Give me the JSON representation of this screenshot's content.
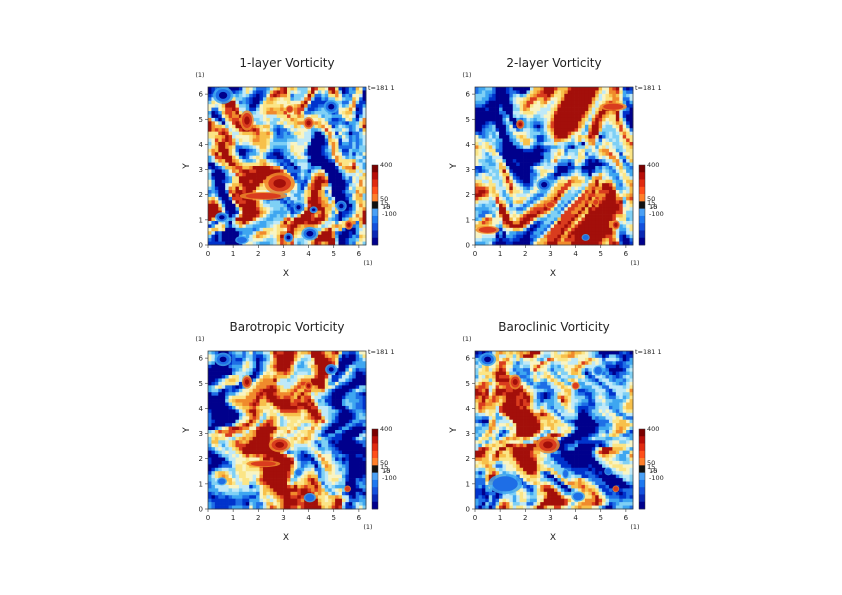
{
  "chart_data": [
    {
      "type": "heatmap",
      "title": "1-layer Vorticity",
      "xlabel": "X",
      "ylabel": "Y",
      "x_unit": "(1)",
      "y_unit": "(1)",
      "xlim": [
        0,
        6.283
      ],
      "ylim": [
        0,
        6.283
      ],
      "xticks": [
        "0",
        "1",
        "2",
        "3",
        "4",
        "5",
        "6"
      ],
      "yticks": [
        "0",
        "1",
        "2",
        "3",
        "4",
        "5",
        "6"
      ],
      "time_label": "t=181 1",
      "colorbar_labels": [
        "400",
        "50",
        "15",
        "10",
        "-5",
        "-100"
      ],
      "colorbar_values": [
        400,
        50,
        15,
        10,
        -5,
        -100
      ],
      "vortices": [
        {
          "x": 2.85,
          "y": 2.45,
          "rx": 0.45,
          "ry": 0.32,
          "v": 1
        },
        {
          "x": 1.55,
          "y": 4.95,
          "rx": 0.2,
          "ry": 0.3,
          "v": 0.9
        },
        {
          "x": 4.0,
          "y": 4.85,
          "rx": 0.16,
          "ry": 0.18,
          "v": 0.8
        },
        {
          "x": 3.25,
          "y": 5.4,
          "rx": 0.12,
          "ry": 0.12,
          "v": 0.6
        },
        {
          "x": 5.6,
          "y": 0.8,
          "rx": 0.12,
          "ry": 0.14,
          "v": 0.7
        },
        {
          "x": 2.2,
          "y": 1.95,
          "rx": 0.7,
          "ry": 0.12,
          "v": 0.6
        },
        {
          "x": 0.6,
          "y": 5.95,
          "rx": 0.3,
          "ry": 0.25,
          "v": -1
        },
        {
          "x": 4.9,
          "y": 5.5,
          "rx": 0.22,
          "ry": 0.2,
          "v": -0.9
        },
        {
          "x": 3.6,
          "y": 1.5,
          "rx": 0.15,
          "ry": 0.16,
          "v": -0.8
        },
        {
          "x": 4.2,
          "y": 1.4,
          "rx": 0.12,
          "ry": 0.1,
          "v": -0.7
        },
        {
          "x": 4.05,
          "y": 0.45,
          "rx": 0.25,
          "ry": 0.2,
          "v": -0.8
        },
        {
          "x": 0.55,
          "y": 1.1,
          "rx": 0.2,
          "ry": 0.15,
          "v": -0.7
        },
        {
          "x": 5.3,
          "y": 1.55,
          "rx": 0.16,
          "ry": 0.16,
          "v": -0.75
        },
        {
          "x": 3.2,
          "y": 0.3,
          "rx": 0.14,
          "ry": 0.14,
          "v": -0.7
        },
        {
          "x": 1.35,
          "y": 0.2,
          "rx": 0.2,
          "ry": 0.12,
          "v": -0.6
        }
      ]
    },
    {
      "type": "heatmap",
      "title": "2-layer Vorticity",
      "xlabel": "X",
      "ylabel": "Y",
      "x_unit": "(1)",
      "y_unit": "(1)",
      "xlim": [
        0,
        6.283
      ],
      "ylim": [
        0,
        6.283
      ],
      "xticks": [
        "0",
        "1",
        "2",
        "3",
        "4",
        "5",
        "6"
      ],
      "yticks": [
        "0",
        "1",
        "2",
        "3",
        "4",
        "5",
        "6"
      ],
      "time_label": "t=181 1",
      "colorbar_labels": [
        "400",
        "50",
        "15",
        "10",
        "-5",
        "-100"
      ],
      "colorbar_values": [
        400,
        50,
        15,
        10,
        -5,
        -100
      ],
      "vortices": [
        {
          "x": 2.75,
          "y": 2.4,
          "rx": 0.22,
          "ry": 0.2,
          "v": -0.9
        },
        {
          "x": 1.8,
          "y": 4.8,
          "rx": 0.12,
          "ry": 0.14,
          "v": 0.7
        },
        {
          "x": 5.6,
          "y": 0.8,
          "rx": 0.12,
          "ry": 0.14,
          "v": 0.7
        },
        {
          "x": 3.0,
          "y": 1.6,
          "rx": 0.15,
          "ry": 0.1,
          "v": 0.6
        },
        {
          "x": 4.8,
          "y": 1.7,
          "rx": 0.1,
          "ry": 0.1,
          "v": 0.6
        },
        {
          "x": 5.5,
          "y": 5.5,
          "rx": 0.4,
          "ry": 0.12,
          "v": 0.5
        },
        {
          "x": 0.5,
          "y": 0.6,
          "rx": 0.35,
          "ry": 0.12,
          "v": 0.6
        },
        {
          "x": 4.4,
          "y": 0.3,
          "rx": 0.12,
          "ry": 0.1,
          "v": -0.6
        }
      ]
    },
    {
      "type": "heatmap",
      "title": "Barotropic Vorticity",
      "xlabel": "X",
      "ylabel": "Y",
      "x_unit": "(1)",
      "y_unit": "(1)",
      "xlim": [
        0,
        6.283
      ],
      "ylim": [
        0,
        6.283
      ],
      "xticks": [
        "0",
        "1",
        "2",
        "3",
        "4",
        "5",
        "6"
      ],
      "yticks": [
        "0",
        "1",
        "2",
        "3",
        "4",
        "5",
        "6"
      ],
      "time_label": "t=181 1",
      "colorbar_labels": [
        "400",
        "50",
        "15",
        "10",
        "-5",
        "-100"
      ],
      "colorbar_values": [
        400,
        50,
        15,
        10,
        -5,
        -100
      ],
      "vortices": [
        {
          "x": 2.85,
          "y": 2.55,
          "rx": 0.32,
          "ry": 0.22,
          "v": 0.95
        },
        {
          "x": 1.55,
          "y": 5.05,
          "rx": 0.15,
          "ry": 0.2,
          "v": 0.85
        },
        {
          "x": 4.0,
          "y": 4.9,
          "rx": 0.12,
          "ry": 0.14,
          "v": 0.7
        },
        {
          "x": 5.55,
          "y": 0.8,
          "rx": 0.1,
          "ry": 0.1,
          "v": 0.6
        },
        {
          "x": 2.2,
          "y": 1.8,
          "rx": 0.5,
          "ry": 0.1,
          "v": 0.5
        },
        {
          "x": 0.6,
          "y": 5.95,
          "rx": 0.25,
          "ry": 0.2,
          "v": -0.8
        },
        {
          "x": 4.9,
          "y": 5.55,
          "rx": 0.18,
          "ry": 0.16,
          "v": -0.8
        },
        {
          "x": 3.6,
          "y": 1.45,
          "rx": 0.12,
          "ry": 0.12,
          "v": -0.6
        },
        {
          "x": 4.05,
          "y": 0.45,
          "rx": 0.18,
          "ry": 0.14,
          "v": -0.6
        },
        {
          "x": 0.55,
          "y": 1.1,
          "rx": 0.15,
          "ry": 0.12,
          "v": -0.5
        }
      ]
    },
    {
      "type": "heatmap",
      "title": "Baroclinic Vorticity",
      "xlabel": "X",
      "ylabel": "Y",
      "x_unit": "(1)",
      "y_unit": "(1)",
      "xlim": [
        0,
        6.283
      ],
      "ylim": [
        0,
        6.283
      ],
      "xticks": [
        "0",
        "1",
        "2",
        "3",
        "4",
        "5",
        "6"
      ],
      "yticks": [
        "0",
        "1",
        "2",
        "3",
        "4",
        "5",
        "6"
      ],
      "time_label": "t=181 1",
      "colorbar_labels": [
        "400",
        "50",
        "15",
        "10",
        "-5",
        "-100"
      ],
      "colorbar_values": [
        400,
        50,
        15,
        10,
        -5,
        -100
      ],
      "vortices": [
        {
          "x": 2.9,
          "y": 2.55,
          "rx": 0.35,
          "ry": 0.25,
          "v": 1
        },
        {
          "x": 1.6,
          "y": 5.05,
          "rx": 0.18,
          "ry": 0.22,
          "v": 0.85
        },
        {
          "x": 4.0,
          "y": 4.9,
          "rx": 0.12,
          "ry": 0.12,
          "v": 0.6
        },
        {
          "x": 5.6,
          "y": 0.8,
          "rx": 0.1,
          "ry": 0.1,
          "v": 0.5
        },
        {
          "x": 0.5,
          "y": 5.95,
          "rx": 0.25,
          "ry": 0.2,
          "v": -0.85
        },
        {
          "x": 4.9,
          "y": 5.5,
          "rx": 0.15,
          "ry": 0.15,
          "v": -0.6
        },
        {
          "x": 3.6,
          "y": 1.4,
          "rx": 0.1,
          "ry": 0.15,
          "v": -0.6
        },
        {
          "x": 5.3,
          "y": 1.5,
          "rx": 0.12,
          "ry": 0.12,
          "v": -0.6
        },
        {
          "x": 1.2,
          "y": 1.0,
          "rx": 0.5,
          "ry": 0.3,
          "v": -0.4
        },
        {
          "x": 4.1,
          "y": 0.5,
          "rx": 0.2,
          "ry": 0.15,
          "v": -0.6
        }
      ]
    }
  ],
  "colors": {
    "palette": [
      "#00008c",
      "#0033cc",
      "#1e6ee6",
      "#3ea6f0",
      "#7fd0f5",
      "#bfe9f8",
      "#f8f4c4",
      "#fbe586",
      "#f7c04a",
      "#f08a2c",
      "#d93c1e",
      "#a30f0a"
    ],
    "colorbar_stops": [
      "#00008c",
      "#0a28b4",
      "#1450dc",
      "#1e78f0",
      "#4aa0f5",
      "#111111",
      "#ff7f2a",
      "#ff4e1a",
      "#e02a10",
      "#b80d08",
      "#7a0000"
    ]
  }
}
